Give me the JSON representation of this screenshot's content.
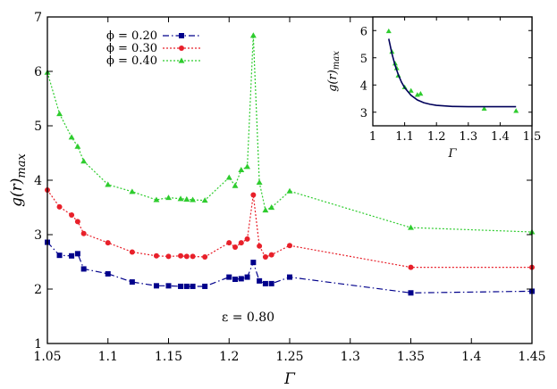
{
  "chart_data": [
    {
      "type": "line",
      "xlabel": "Γ",
      "ylabel": "g(r)max",
      "xlim": [
        1.05,
        1.45
      ],
      "ylim": [
        1,
        7
      ],
      "x_ticks": [
        "1.05",
        "1.1",
        "1.15",
        "1.2",
        "1.25",
        "1.3",
        "1.35",
        "1.4",
        "1.45"
      ],
      "y_ticks": [
        "1",
        "2",
        "3",
        "4",
        "5",
        "6",
        "7"
      ],
      "legend_position": "top-left",
      "annotation": "ε = 0.80",
      "series": [
        {
          "name": "ϕ = 0.20",
          "marker": "square",
          "dash": "dash-dot",
          "color": "#00008b",
          "points": [
            [
              1.05,
              2.86
            ],
            [
              1.06,
              2.62
            ],
            [
              1.07,
              2.61
            ],
            [
              1.075,
              2.65
            ],
            [
              1.08,
              2.37
            ],
            [
              1.1,
              2.28
            ],
            [
              1.12,
              2.13
            ],
            [
              1.14,
              2.06
            ],
            [
              1.15,
              2.06
            ],
            [
              1.16,
              2.05
            ],
            [
              1.165,
              2.05
            ],
            [
              1.17,
              2.05
            ],
            [
              1.18,
              2.05
            ],
            [
              1.2,
              2.22
            ],
            [
              1.205,
              2.18
            ],
            [
              1.21,
              2.19
            ],
            [
              1.215,
              2.22
            ],
            [
              1.22,
              2.49
            ],
            [
              1.225,
              2.15
            ],
            [
              1.23,
              2.1
            ],
            [
              1.235,
              2.1
            ],
            [
              1.25,
              2.22
            ],
            [
              1.35,
              1.93
            ],
            [
              1.45,
              1.96
            ]
          ]
        },
        {
          "name": "ϕ = 0.30",
          "marker": "circle",
          "dash": "dotted",
          "color": "#e8202a",
          "points": [
            [
              1.05,
              3.82
            ],
            [
              1.06,
              3.51
            ],
            [
              1.07,
              3.36
            ],
            [
              1.075,
              3.24
            ],
            [
              1.08,
              3.02
            ],
            [
              1.1,
              2.85
            ],
            [
              1.12,
              2.68
            ],
            [
              1.14,
              2.61
            ],
            [
              1.15,
              2.6
            ],
            [
              1.16,
              2.61
            ],
            [
              1.165,
              2.6
            ],
            [
              1.17,
              2.6
            ],
            [
              1.18,
              2.59
            ],
            [
              1.2,
              2.85
            ],
            [
              1.205,
              2.77
            ],
            [
              1.21,
              2.85
            ],
            [
              1.215,
              2.92
            ],
            [
              1.22,
              3.73
            ],
            [
              1.225,
              2.79
            ],
            [
              1.23,
              2.59
            ],
            [
              1.235,
              2.63
            ],
            [
              1.25,
              2.8
            ],
            [
              1.35,
              2.4
            ],
            [
              1.45,
              2.4
            ]
          ]
        },
        {
          "name": "ϕ = 0.40",
          "marker": "triangle",
          "dash": "dotted",
          "color": "#2ecc2e",
          "points": [
            [
              1.05,
              5.98
            ],
            [
              1.06,
              5.22
            ],
            [
              1.07,
              4.79
            ],
            [
              1.075,
              4.62
            ],
            [
              1.08,
              4.35
            ],
            [
              1.1,
              3.92
            ],
            [
              1.12,
              3.79
            ],
            [
              1.14,
              3.64
            ],
            [
              1.15,
              3.68
            ],
            [
              1.16,
              3.66
            ],
            [
              1.165,
              3.65
            ],
            [
              1.17,
              3.64
            ],
            [
              1.18,
              3.63
            ],
            [
              1.2,
              4.05
            ],
            [
              1.205,
              3.9
            ],
            [
              1.21,
              4.19
            ],
            [
              1.215,
              4.25
            ],
            [
              1.22,
              6.66
            ],
            [
              1.225,
              3.96
            ],
            [
              1.23,
              3.45
            ],
            [
              1.235,
              3.5
            ],
            [
              1.25,
              3.8
            ],
            [
              1.35,
              3.13
            ],
            [
              1.45,
              3.05
            ]
          ]
        }
      ]
    },
    {
      "type": "scatter",
      "xlabel": "Γ",
      "ylabel": "g(r)max",
      "xlim": [
        1.0,
        1.5
      ],
      "ylim": [
        2.5,
        6.5
      ],
      "x_ticks": [
        "1",
        "1.1",
        "1.2",
        "1.3",
        "1.4",
        "1.5"
      ],
      "y_ticks": [
        "3",
        "4",
        "5",
        "6"
      ],
      "series": [
        {
          "marker": "triangle",
          "color": "#2ecc2e",
          "points": [
            [
              1.05,
              5.98
            ],
            [
              1.06,
              5.22
            ],
            [
              1.07,
              4.79
            ],
            [
              1.075,
              4.62
            ],
            [
              1.08,
              4.35
            ],
            [
              1.1,
              3.92
            ],
            [
              1.12,
              3.79
            ],
            [
              1.14,
              3.64
            ],
            [
              1.15,
              3.68
            ],
            [
              1.35,
              3.13
            ],
            [
              1.45,
              3.05
            ]
          ]
        },
        {
          "type": "fit",
          "color": "#00005a",
          "points": [
            [
              1.05,
              5.7
            ],
            [
              1.06,
              5.15
            ],
            [
              1.07,
              4.72
            ],
            [
              1.08,
              4.38
            ],
            [
              1.09,
              4.11
            ],
            [
              1.1,
              3.9
            ],
            [
              1.12,
              3.62
            ],
            [
              1.14,
              3.45
            ],
            [
              1.16,
              3.35
            ],
            [
              1.18,
              3.29
            ],
            [
              1.2,
              3.25
            ],
            [
              1.25,
              3.21
            ],
            [
              1.3,
              3.2
            ],
            [
              1.35,
              3.2
            ],
            [
              1.4,
              3.2
            ],
            [
              1.45,
              3.2
            ]
          ]
        }
      ]
    }
  ]
}
